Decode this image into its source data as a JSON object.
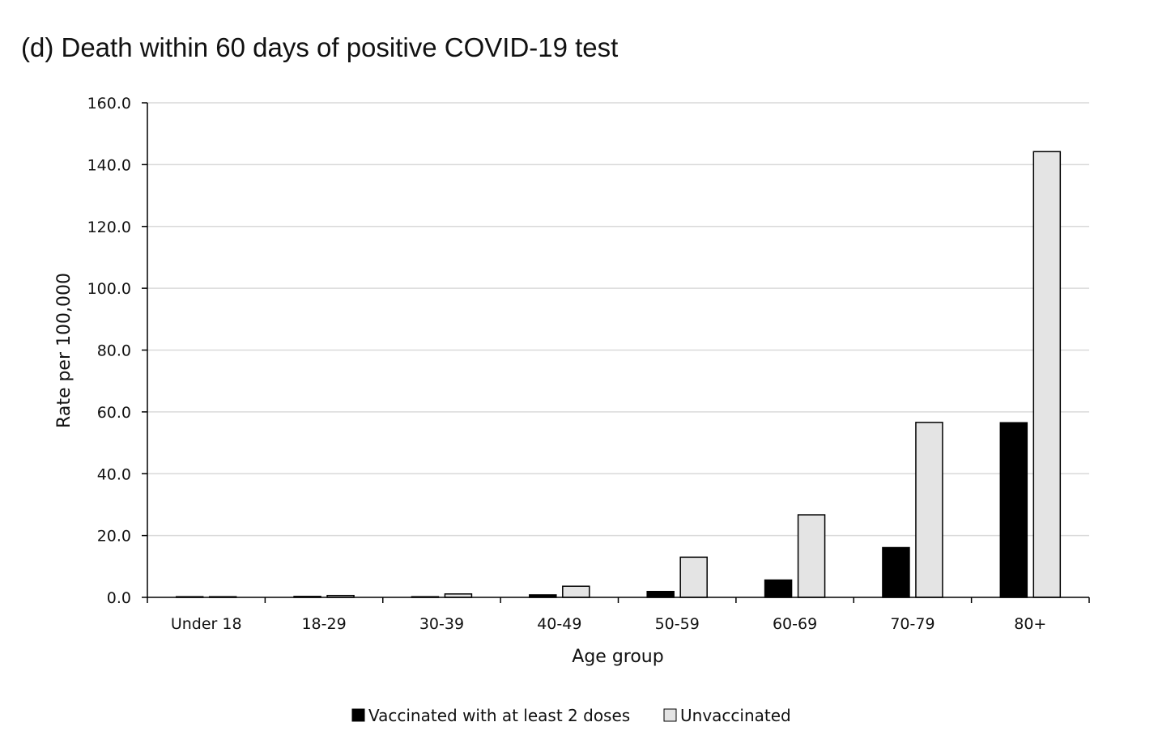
{
  "chart_data": {
    "type": "bar",
    "title": "(d) Death within 60 days of positive COVID-19 test",
    "xlabel": "Age group",
    "ylabel": "Rate per 100,000",
    "categories": [
      "Under 18",
      "18-29",
      "30-39",
      "40-49",
      "50-59",
      "60-69",
      "70-79",
      "80+"
    ],
    "series": [
      {
        "name": "Vaccinated with at least 2 doses",
        "color": "#000000",
        "values": [
          0.0,
          0.3,
          0.2,
          0.8,
          1.9,
          5.6,
          16.1,
          56.5
        ]
      },
      {
        "name": "Unvaccinated",
        "color": "#e4e4e4",
        "values": [
          0.1,
          0.6,
          1.1,
          3.6,
          13.0,
          26.7,
          56.6,
          144.2
        ]
      }
    ],
    "ylim": [
      0,
      160
    ],
    "yticks": [
      "0.0",
      "20.0",
      "40.0",
      "60.0",
      "80.0",
      "100.0",
      "120.0",
      "140.0",
      "160.0"
    ],
    "grid": true,
    "legend_position": "bottom"
  }
}
